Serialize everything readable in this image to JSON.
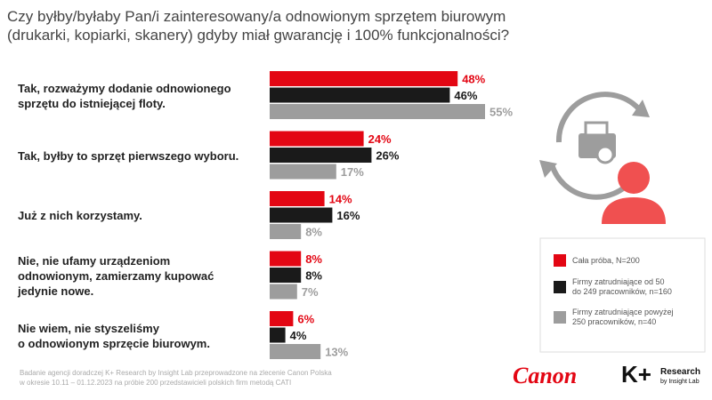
{
  "chart_data": {
    "type": "bar",
    "orientation": "horizontal",
    "title": "Czy byłby/byłaby Pan/i zainteresowany/a odnowionym sprzętem biurowym\n(drukarki, kopiarki, skanery) gdyby miał gwarancję i 100% funkcjonalności?",
    "categories": [
      "Tak, rozważymy dodanie odnowionego\nsprzętu do istniejącej floty.",
      "Tak, byłby to sprzęt pierwszego wyboru.",
      "Już z nich korzystamy.",
      "Nie, nie ufamy urządzeniom\nodnowionym, zamierzamy kupować\njedynie nowe.",
      "Nie wiem, nie styszeliśmy\no odnowionym sprzęcie biurowym."
    ],
    "series": [
      {
        "name": "Cała próba, N=200",
        "color": "#e30613",
        "values": [
          48,
          24,
          14,
          8,
          6
        ],
        "value_labels": [
          "48%",
          "24%",
          "14%",
          "8%",
          "6%"
        ]
      },
      {
        "name": "Firmy zatrudniające od 50\ndo 249 pracowników, n=160",
        "color": "#1a1a1a",
        "values": [
          46,
          26,
          16,
          8,
          4
        ],
        "value_labels": [
          "46%",
          "26%",
          "16%",
          "8%",
          "4%"
        ]
      },
      {
        "name": "Firmy zatrudniające powyżej\n250 pracowników, n=40",
        "color": "#9d9d9d",
        "values": [
          55,
          17,
          8,
          7,
          13
        ],
        "value_labels": [
          "55%",
          "17%",
          "8%",
          "7%",
          "13%"
        ]
      }
    ],
    "footnote": "Badanie agencji doradczej K+ Research by Insight Lab przeprowadzone na zlecenie Canon Polska\nw okresie 10.11 – 01.12.2023 na próbie 200 przedstawicieli polskich firm metodą CATI",
    "logos": [
      "Canon",
      "K+",
      "Research",
      "by Insight Lab"
    ]
  }
}
